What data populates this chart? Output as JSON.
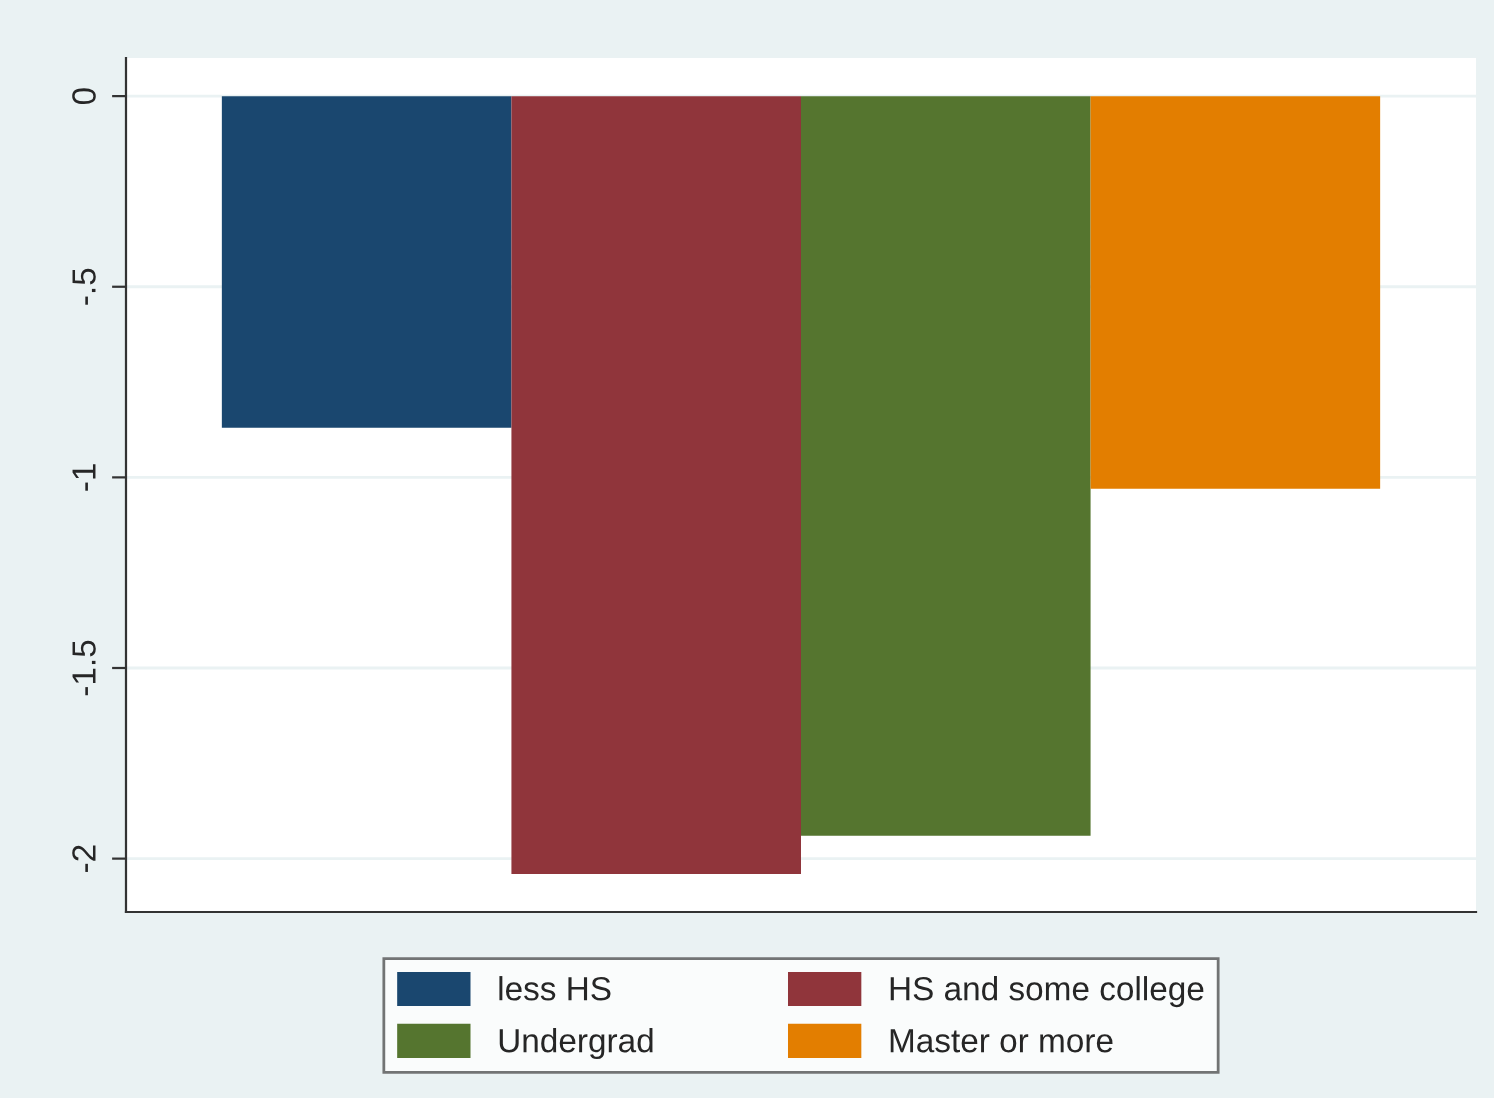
{
  "chart_data": {
    "type": "bar",
    "categories": [
      null
    ],
    "series": [
      {
        "name": "less HS",
        "color": "#1a476f",
        "values": [
          -0.87
        ]
      },
      {
        "name": "HS and some college",
        "color": "#90353b",
        "values": [
          -2.04
        ]
      },
      {
        "name": "Undergrad",
        "color": "#55752f",
        "values": [
          -1.94
        ]
      },
      {
        "name": "Master or more",
        "color": "#e37e00",
        "values": [
          -1.03
        ]
      }
    ],
    "ylim": [
      -2.14,
      0.1
    ],
    "yticks": [
      {
        "value": 0,
        "label": "0"
      },
      {
        "value": -0.5,
        "label": "-.5"
      },
      {
        "value": -1,
        "label": "-1"
      },
      {
        "value": -1.5,
        "label": "-1.5"
      },
      {
        "value": -2,
        "label": "-2"
      }
    ],
    "grid": "y",
    "legend": "bottom"
  }
}
